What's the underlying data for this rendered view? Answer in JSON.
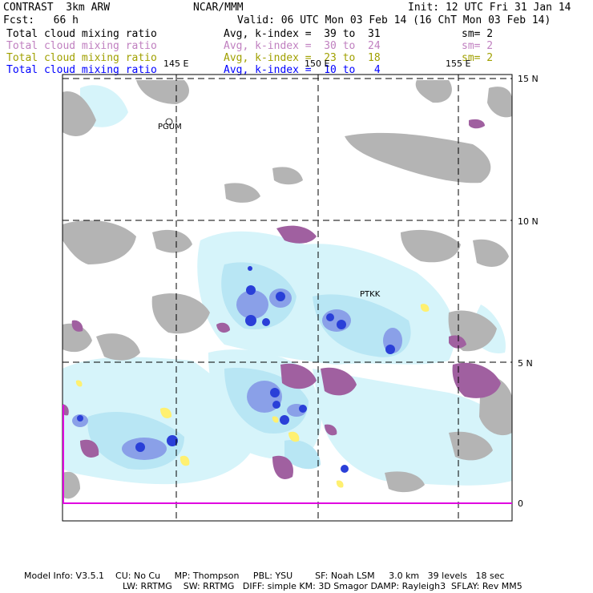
{
  "header": {
    "model": "CONTRAST  3km ARW",
    "org": "NCAR/MMM",
    "init": "Init: 12 UTC Fri 31 Jan 14",
    "fcst": "Fcst:   66 h",
    "valid": "Valid: 06 UTC Mon 03 Feb 14 (16 ChT Mon 03 Feb 14)"
  },
  "layers": [
    {
      "name": "Total cloud mixing ratio",
      "range": "Avg, k-index =  39 to  31",
      "sm": "sm= 2",
      "color": "#000000"
    },
    {
      "name": "Total cloud mixing ratio",
      "range": "Avg, k-index =  30 to  24",
      "sm": "sm= 2",
      "color": "#c080c0"
    },
    {
      "name": "Total cloud mixing ratio",
      "range": "Avg, k-index =  23 to  18",
      "sm": "sm= 2",
      "color": "#a0a000"
    },
    {
      "name": "Total cloud mixing ratio",
      "range": "Avg, k-index =  10 to   4",
      "sm": "",
      "color": "#0000ff"
    }
  ],
  "map": {
    "lon_labels": [
      "145 E",
      "150 E",
      "155 E"
    ],
    "lat_labels": [
      "15 N",
      "10 N",
      "5 N",
      "0"
    ],
    "stations": [
      "PGUM",
      "PTKK"
    ]
  },
  "footer": {
    "line1": "Model Info: V3.5.1    CU: No Cu     MP: Thompson     PBL: YSU        SF: Noah LSM     3.0 km   39 levels   18 sec",
    "line2": "LW: RRTMG    SW: RRTMG   DIFF: simple KM: 3D Smagor DAMP: Rayleigh3  SFLAY: Rev MM5"
  }
}
